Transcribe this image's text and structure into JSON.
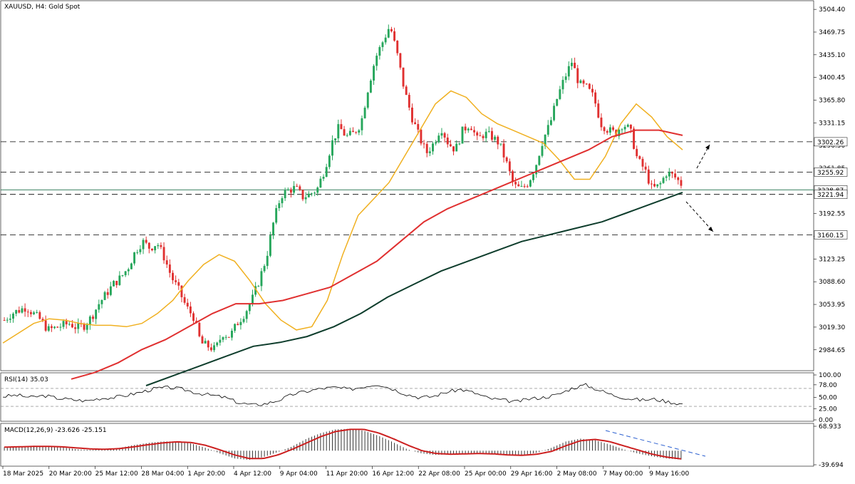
{
  "header": {
    "title": "XAUUSD, H4:  Gold Spot"
  },
  "colors": {
    "up": "#26a65b",
    "down": "#e03030",
    "ma_fast": "#f0b020",
    "ma_mid": "#e03030",
    "ma_slow": "#0e3d2c",
    "level": "#1f6f4a",
    "macd_signal": "#cc1f1f",
    "macd_hist": "#222222",
    "trend": "#2b5fd0",
    "grid": "#000000"
  },
  "chart_data": [
    {
      "type": "candlestick",
      "panel": "price",
      "title": "XAUUSD, H4:  Gold Spot",
      "ylim": [
        2955,
        3510
      ],
      "y_ticks": [
        "3504.40",
        "3469.75",
        "3435.10",
        "3400.45",
        "3365.80",
        "3331.15",
        "3296.50",
        "3261.85",
        "3227.20",
        "3192.55",
        "3157.90",
        "3123.25",
        "3088.60",
        "3053.95",
        "3019.30",
        "2984.65"
      ],
      "y_tick_values": [
        3504.4,
        3469.75,
        3435.1,
        3400.45,
        3365.8,
        3331.15,
        3296.5,
        3261.85,
        3227.2,
        3192.55,
        3157.9,
        3123.25,
        3088.6,
        3053.95,
        3019.3,
        2984.65
      ],
      "x_ticks": [
        "18 Mar 2025",
        "20 Mar 20:00",
        "25 Mar 12:00",
        "28 Mar 04:00",
        "1 Apr 20:00",
        "4 Apr 12:00",
        "9 Apr 04:00",
        "11 Apr 20:00",
        "16 Apr 12:00",
        "22 Apr 08:00",
        "25 Apr 00:00",
        "29 Apr 16:00",
        "2 May 08:00",
        "7 May 00:00",
        "9 May 16:00"
      ],
      "close_path": [
        3030,
        3040,
        3045,
        3050,
        3040,
        3030,
        3015,
        3018,
        3022,
        3025,
        3018,
        3022,
        3035,
        3055,
        3070,
        3085,
        3095,
        3110,
        3135,
        3150,
        3140,
        3148,
        3125,
        3095,
        3075,
        3050,
        3035,
        2995,
        2990,
        2985,
        3010,
        3005,
        3025,
        3040,
        3060,
        3090,
        3125,
        3180,
        3220,
        3228,
        3232,
        3218,
        3222,
        3230,
        3260,
        3300,
        3325,
        3310,
        3315,
        3330,
        3385,
        3430,
        3455,
        3480,
        3435,
        3380,
        3340,
        3310,
        3285,
        3300,
        3325,
        3300,
        3290,
        3320,
        3330,
        3305,
        3315,
        3310,
        3300,
        3270,
        3235,
        3230,
        3240,
        3265,
        3305,
        3330,
        3370,
        3400,
        3425,
        3390,
        3385,
        3370,
        3330,
        3320,
        3315,
        3330,
        3320,
        3275,
        3260,
        3230,
        3235,
        3255,
        3250,
        3238
      ],
      "levels": [
        {
          "value": 3302.26,
          "label": "3302.26",
          "style": "dashed"
        },
        {
          "value": 3255.92,
          "label": "3255.92",
          "style": "dashed"
        },
        {
          "value": 3228.87,
          "label": "3228.87",
          "style": "solid"
        },
        {
          "value": 3221.94,
          "label": "3221.94",
          "style": "dashed"
        },
        {
          "value": 3160.15,
          "label": "3160.15",
          "style": "dashed"
        }
      ],
      "ma_fast_path": [
        2995,
        3010,
        3025,
        3032,
        3030,
        3025,
        3022,
        3022,
        3020,
        3025,
        3040,
        3060,
        3090,
        3115,
        3130,
        3120,
        3090,
        3055,
        3030,
        3015,
        3020,
        3060,
        3130,
        3190,
        3215,
        3240,
        3280,
        3320,
        3360,
        3380,
        3370,
        3345,
        3330,
        3320,
        3310,
        3300,
        3275,
        3245,
        3245,
        3280,
        3330,
        3360,
        3340,
        3310,
        3290
      ],
      "ma_mid_path": [
        2940,
        2950,
        2965,
        2985,
        3000,
        3020,
        3040,
        3055,
        3055,
        3060,
        3070,
        3080,
        3100,
        3120,
        3150,
        3180,
        3200,
        3215,
        3230,
        3245,
        3260,
        3275,
        3290,
        3310,
        3320,
        3320,
        3312
      ],
      "ma_slow_path": [
        2930,
        2945,
        2960,
        2975,
        2990,
        2996,
        3005,
        3020,
        3040,
        3065,
        3085,
        3105,
        3120,
        3135,
        3150,
        3160,
        3170,
        3180,
        3195,
        3210,
        3225
      ]
    },
    {
      "type": "line",
      "panel": "rsi",
      "title": "RSI(14) 35.03",
      "ylim": [
        0,
        100
      ],
      "y_ticks": [
        "100.00",
        "78.00",
        "50.00",
        "25.00",
        "0.00"
      ],
      "y_tick_values": [
        100,
        78,
        50,
        25,
        0
      ],
      "guide_levels": [
        70,
        30
      ],
      "values": [
        52,
        55,
        50,
        54,
        48,
        45,
        42,
        48,
        50,
        55,
        62,
        70,
        72,
        68,
        60,
        55,
        50,
        38,
        33,
        36,
        45,
        58,
        64,
        70,
        72,
        68,
        74,
        80,
        70,
        58,
        50,
        52,
        62,
        68,
        60,
        48,
        44,
        40,
        47,
        50,
        56,
        70,
        78,
        66,
        55,
        48,
        44,
        46,
        40,
        35
      ]
    },
    {
      "type": "bar",
      "panel": "macd",
      "title": "MACD(12,26,9) -23.626 -25.151",
      "ylim": [
        -39.694,
        68.933
      ],
      "y_ticks": [
        "68.933",
        "-39.694"
      ],
      "y_tick_values": [
        68.933,
        -39.694
      ],
      "histogram": [
        10,
        12,
        14,
        12,
        10,
        4,
        2,
        3,
        8,
        16,
        22,
        26,
        26,
        20,
        8,
        -8,
        -22,
        -26,
        -18,
        -4,
        12,
        34,
        50,
        60,
        62,
        56,
        42,
        24,
        4,
        -8,
        -12,
        -10,
        -8,
        -6,
        -10,
        -14,
        -12,
        -6,
        8,
        26,
        34,
        30,
        18,
        4,
        -8,
        -16,
        -22,
        -25
      ],
      "signal": [
        10,
        11,
        12,
        12,
        11,
        8,
        5,
        4,
        6,
        11,
        17,
        22,
        25,
        23,
        15,
        2,
        -12,
        -22,
        -22,
        -12,
        4,
        22,
        40,
        54,
        60,
        60,
        50,
        34,
        16,
        0,
        -8,
        -10,
        -9,
        -8,
        -9,
        -12,
        -13,
        -10,
        -2,
        14,
        28,
        32,
        26,
        14,
        2,
        -10,
        -18,
        -23
      ]
    }
  ]
}
